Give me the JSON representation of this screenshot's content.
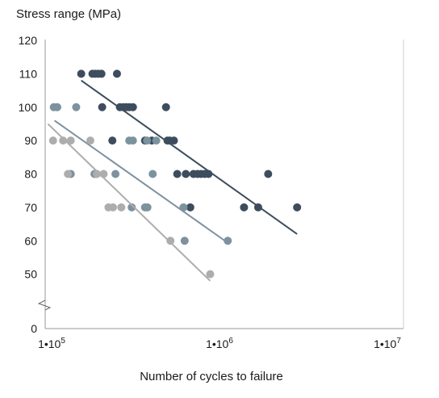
{
  "chart_data": {
    "type": "scatter",
    "title": "",
    "ylabel": "Stress range (MPa)",
    "xlabel": "Number of cycles to failure",
    "x_scale": "log",
    "xlim": [
      90000,
      10000000
    ],
    "ylim": [
      40,
      120
    ],
    "y_axis_break": true,
    "y_ticks": [
      0,
      50,
      60,
      70,
      80,
      90,
      100,
      110,
      120
    ],
    "x_ticks": [
      {
        "value": 100000,
        "base": "1•10",
        "exp": "5"
      },
      {
        "value": 1000000,
        "base": "1•10",
        "exp": "6"
      },
      {
        "value": 10000000,
        "base": "1•10",
        "exp": "7"
      }
    ],
    "grid": false,
    "legend": "none",
    "series": [
      {
        "color": "#3d4d5e",
        "points": [
          [
            150000,
            110
          ],
          [
            175000,
            110
          ],
          [
            182000,
            110
          ],
          [
            190000,
            110
          ],
          [
            198000,
            110
          ],
          [
            245000,
            110
          ],
          [
            200000,
            100
          ],
          [
            255000,
            100
          ],
          [
            268000,
            100
          ],
          [
            278000,
            100
          ],
          [
            290000,
            100
          ],
          [
            305000,
            100
          ],
          [
            480000,
            100
          ],
          [
            230000,
            90
          ],
          [
            360000,
            90
          ],
          [
            395000,
            90
          ],
          [
            490000,
            90
          ],
          [
            505000,
            90
          ],
          [
            535000,
            90
          ],
          [
            560000,
            80
          ],
          [
            630000,
            80
          ],
          [
            700000,
            80
          ],
          [
            740000,
            80
          ],
          [
            775000,
            80
          ],
          [
            815000,
            80
          ],
          [
            860000,
            80
          ],
          [
            1950000,
            80
          ],
          [
            670000,
            70
          ],
          [
            1400000,
            70
          ],
          [
            1700000,
            70
          ],
          [
            2900000,
            70
          ]
        ],
        "trend": [
          [
            150000,
            108
          ],
          [
            2900000,
            62
          ]
        ]
      },
      {
        "color": "#7d929f",
        "points": [
          [
            103000,
            100
          ],
          [
            108000,
            100
          ],
          [
            140000,
            100
          ],
          [
            290000,
            90
          ],
          [
            305000,
            90
          ],
          [
            370000,
            90
          ],
          [
            420000,
            90
          ],
          [
            130000,
            80
          ],
          [
            180000,
            80
          ],
          [
            185000,
            80
          ],
          [
            240000,
            80
          ],
          [
            400000,
            80
          ],
          [
            300000,
            70
          ],
          [
            360000,
            70
          ],
          [
            372000,
            70
          ],
          [
            610000,
            70
          ],
          [
            620000,
            60
          ],
          [
            1120000,
            60
          ]
        ],
        "trend": [
          [
            104000,
            96
          ],
          [
            1150000,
            59
          ]
        ]
      },
      {
        "color": "#adadad",
        "points": [
          [
            102000,
            90
          ],
          [
            117000,
            90
          ],
          [
            130000,
            90
          ],
          [
            170000,
            90
          ],
          [
            125000,
            80
          ],
          [
            186000,
            80
          ],
          [
            204000,
            80
          ],
          [
            218000,
            70
          ],
          [
            232000,
            70
          ],
          [
            260000,
            70
          ],
          [
            510000,
            60
          ],
          [
            880000,
            50
          ]
        ],
        "trend": [
          [
            95000,
            95
          ],
          [
            880000,
            48
          ]
        ]
      }
    ]
  }
}
